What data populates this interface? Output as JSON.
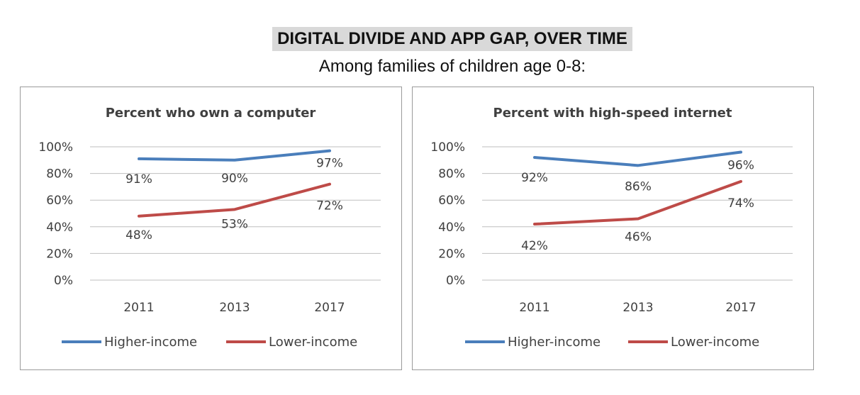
{
  "header": {
    "title": "DIGITAL DIVIDE AND APP GAP, OVER TIME",
    "subtitle": "Among families of children age 0-8:"
  },
  "colors": {
    "higher_income": "#4a7ebb",
    "lower_income": "#be4b48",
    "title_highlight": "#d9d9d9"
  },
  "chart_data": [
    {
      "type": "line",
      "title": "Percent who own a computer",
      "categories": [
        "2011",
        "2013",
        "2017"
      ],
      "y_ticks": [
        "0%",
        "20%",
        "40%",
        "60%",
        "80%",
        "100%"
      ],
      "ylim": [
        0,
        100
      ],
      "grid": true,
      "legend_position": "bottom",
      "series": [
        {
          "name": "Higher-income",
          "values": [
            91,
            90,
            97
          ],
          "labels": [
            "91%",
            "90%",
            "97%"
          ],
          "color": "#4a7ebb"
        },
        {
          "name": "Lower-income",
          "values": [
            48,
            53,
            72
          ],
          "labels": [
            "48%",
            "53%",
            "72%"
          ],
          "color": "#be4b48"
        }
      ]
    },
    {
      "type": "line",
      "title": "Percent with high-speed internet",
      "categories": [
        "2011",
        "2013",
        "2017"
      ],
      "y_ticks": [
        "0%",
        "20%",
        "40%",
        "60%",
        "80%",
        "100%"
      ],
      "ylim": [
        0,
        100
      ],
      "grid": true,
      "legend_position": "bottom",
      "series": [
        {
          "name": "Higher-income",
          "values": [
            92,
            86,
            96
          ],
          "labels": [
            "92%",
            "86%",
            "96%"
          ],
          "color": "#4a7ebb"
        },
        {
          "name": "Lower-income",
          "values": [
            42,
            46,
            74
          ],
          "labels": [
            "42%",
            "46%",
            "74%"
          ],
          "color": "#be4b48"
        }
      ]
    }
  ]
}
